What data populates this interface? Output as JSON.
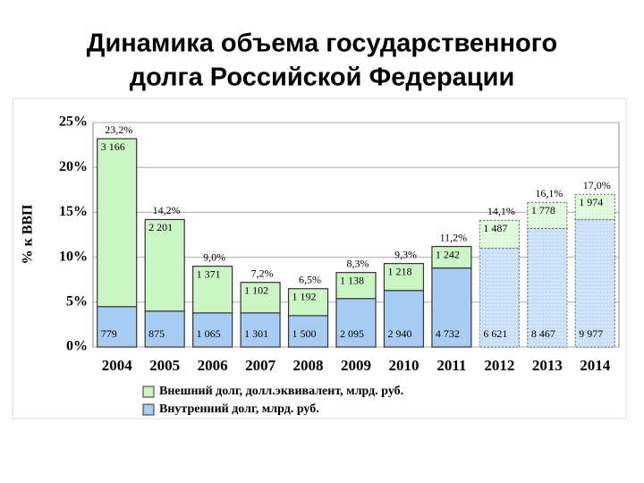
{
  "chart_data": {
    "type": "stacked_bar",
    "title": [
      "Динамика объема государственного",
      "долга Российской Федерации"
    ],
    "y_label": "% к ВВП",
    "categories": [
      "2004",
      "2005",
      "2006",
      "2007",
      "2008",
      "2009",
      "2010",
      "2011",
      "2012",
      "2013",
      "2014"
    ],
    "dashed": [
      false,
      false,
      false,
      false,
      false,
      false,
      false,
      false,
      true,
      true,
      true
    ],
    "series": [
      {
        "name": "Внутренний долг, млрд. руб.",
        "color": "#a8ccf2",
        "values": [
          4.5,
          4.0,
          3.8,
          3.8,
          3.5,
          5.4,
          6.3,
          8.8,
          11.0,
          13.2,
          14.2
        ],
        "segment_labels": [
          "779",
          "875",
          "1 065",
          "1 301",
          "1 500",
          "2 095",
          "2 940",
          "4 732",
          "6 621",
          "8 467",
          "9 977"
        ]
      },
      {
        "name": "Внешний долг, долл.эквивалент, млрд. руб.",
        "color": "#ccf5c6",
        "values": [
          18.7,
          10.2,
          5.2,
          3.4,
          3.0,
          2.9,
          3.0,
          2.4,
          3.1,
          2.9,
          2.8
        ],
        "segment_labels": [
          "3 166",
          "2 201",
          "1 371",
          "1 102",
          "1 192",
          "1 138",
          "1 218",
          "1 242",
          "1 487",
          "1 778",
          "1 974"
        ]
      }
    ],
    "totals": {
      "values": [
        23.2,
        14.2,
        9.0,
        7.2,
        6.5,
        8.3,
        9.3,
        11.2,
        14.1,
        16.1,
        17.0
      ],
      "value_labels": [
        "23,2%",
        "14,2%",
        "9,0%",
        "7,2%",
        "6,5%",
        "8,3%",
        "9,3%",
        "11,2%",
        "14,1%",
        "16,1%",
        "17,0%"
      ]
    },
    "ylim": [
      0,
      25
    ],
    "yticks": [
      {
        "value": 0,
        "label": "0%"
      },
      {
        "value": 5,
        "label": "5%"
      },
      {
        "value": 10,
        "label": "10%"
      },
      {
        "value": 15,
        "label": "15%"
      },
      {
        "value": 20,
        "label": "20%"
      },
      {
        "value": 25,
        "label": "25%"
      }
    ],
    "grid": true
  }
}
